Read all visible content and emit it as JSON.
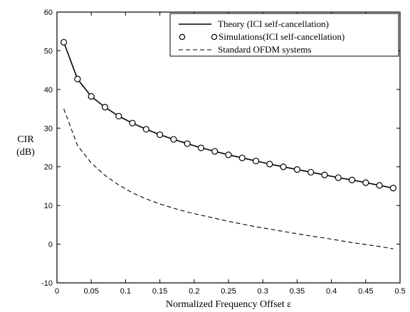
{
  "chart_data": {
    "type": "line",
    "title": "",
    "xlabel": "Normalized Frequency Offset ε",
    "ylabel_lines": [
      "CIR",
      "(dB)"
    ],
    "xlim": [
      0,
      0.5
    ],
    "ylim": [
      -10,
      60
    ],
    "xticks": [
      0,
      0.05,
      0.1,
      0.15,
      0.2,
      0.25,
      0.3,
      0.35,
      0.4,
      0.45,
      0.5
    ],
    "xtick_labels": [
      "0",
      "0.05",
      "0.1",
      "0.15",
      "0.2",
      "0.25",
      "0.3",
      "0.35",
      "0.4",
      "0.45",
      "0.5"
    ],
    "yticks": [
      -10,
      0,
      10,
      20,
      30,
      40,
      50,
      60
    ],
    "ytick_labels": [
      "-10",
      "0",
      "10",
      "20",
      "30",
      "40",
      "50",
      "60"
    ],
    "grid": false,
    "legend_position": "top-right",
    "x": [
      0.01,
      0.03,
      0.05,
      0.07,
      0.09,
      0.11,
      0.13,
      0.15,
      0.17,
      0.19,
      0.21,
      0.23,
      0.25,
      0.27,
      0.29,
      0.31,
      0.33,
      0.35,
      0.37,
      0.39,
      0.41,
      0.43,
      0.45,
      0.47,
      0.49
    ],
    "series": [
      {
        "name": "Theory (ICI self-cancellation)",
        "style": "solid",
        "values": [
          52.2,
          42.7,
          38.2,
          35.4,
          33.1,
          31.3,
          29.7,
          28.3,
          27.1,
          26.0,
          24.9,
          24.0,
          23.1,
          22.3,
          21.5,
          20.7,
          20.0,
          19.3,
          18.6,
          17.9,
          17.2,
          16.6,
          15.9,
          15.2,
          14.5
        ]
      },
      {
        "name": "Simulations(ICI self-cancellation)",
        "style": "circle-markers",
        "values": [
          52.2,
          42.7,
          38.2,
          35.4,
          33.1,
          31.3,
          29.7,
          28.3,
          27.1,
          26.0,
          24.9,
          24.0,
          23.1,
          22.3,
          21.5,
          20.7,
          20.0,
          19.3,
          18.6,
          17.9,
          17.2,
          16.6,
          15.9,
          15.2,
          14.5
        ]
      },
      {
        "name": "Standard OFDM systems",
        "style": "dashed",
        "values": [
          35.0,
          25.5,
          21.0,
          17.8,
          15.3,
          13.3,
          11.7,
          10.4,
          9.3,
          8.3,
          7.5,
          6.7,
          5.9,
          5.2,
          4.5,
          3.9,
          3.3,
          2.7,
          2.1,
          1.6,
          1.0,
          0.4,
          -0.1,
          -0.6,
          -1.2
        ]
      }
    ]
  }
}
